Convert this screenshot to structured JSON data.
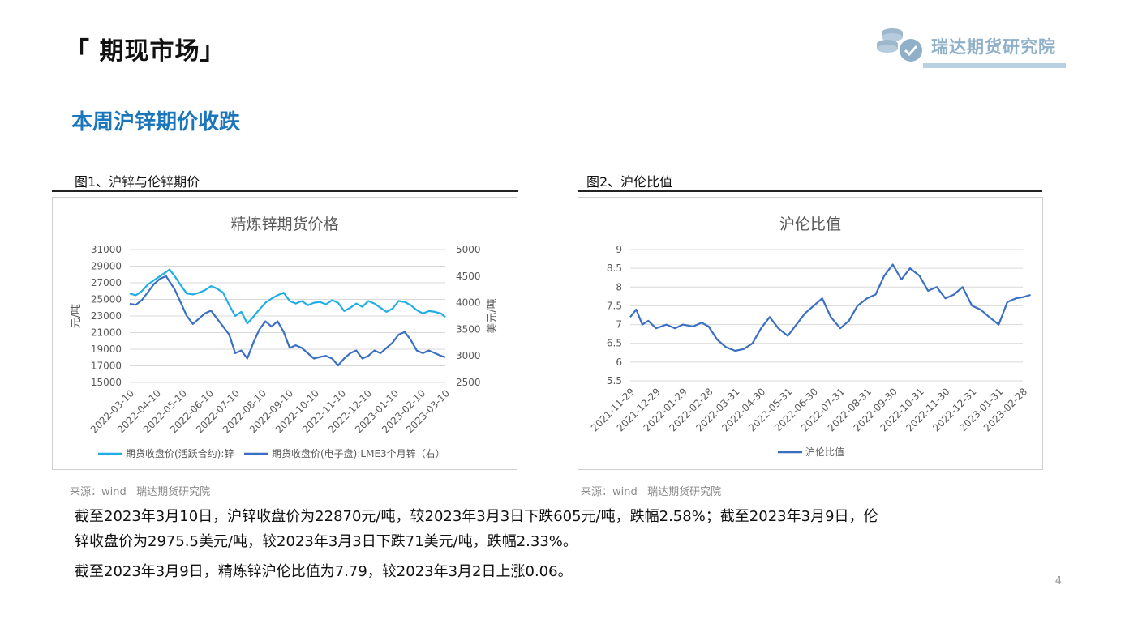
{
  "header": {
    "section_title": "「 期现市场」",
    "logo_text": "瑞达期货研究院"
  },
  "subheading": "本周沪锌期价收跌",
  "fig1": {
    "caption": "图1、沪锌与伦锌期价",
    "source": "来源：wind   瑞达期货研究院"
  },
  "fig2": {
    "caption": "图2、沪伦比值",
    "source": "来源：wind   瑞达期货研究院"
  },
  "body": {
    "para1_line1": "截至2023年3月10日，沪锌收盘价为22870元/吨，较2023年3月3日下跌605元/吨，跌幅2.58%；截至2023年3月9日，伦",
    "para1_line2": "锌收盘价为2975.5美元/吨，较2023年3月3日下跌71美元/吨，跌幅2.33%。",
    "para2": "截至2023年3月9日，精炼锌沪伦比值为7.79，较2023年3月2日上涨0.06。"
  },
  "page_number": "4",
  "colors": {
    "accent": "#1b76bb",
    "series_light": "#21aee5",
    "series_dark": "#3a6fc4"
  },
  "chart_data": [
    {
      "type": "line",
      "title": "精炼锌期货价格",
      "ylabel": "元/吨",
      "y2label": "美元/吨",
      "ylim": [
        15000,
        31000
      ],
      "y2lim": [
        2500,
        5000
      ],
      "yticks": [
        "15000",
        "17000",
        "19000",
        "21000",
        "23000",
        "25000",
        "27000",
        "29000",
        "31000"
      ],
      "y2ticks": [
        "2500",
        "3000",
        "3500",
        "4000",
        "4500",
        "5000"
      ],
      "xticks": [
        "2022-03-10",
        "2022-04-10",
        "2022-05-10",
        "2022-06-10",
        "2022-07-10",
        "2022-08-10",
        "2022-09-10",
        "2022-10-10",
        "2022-11-10",
        "2022-12-10",
        "2023-01-10",
        "2023-02-10",
        "2023-03-10"
      ],
      "legend_position": "bottom",
      "grid": true,
      "series": [
        {
          "name": "期货收盘价(活跃合约):锌",
          "axis": "left",
          "color": "#21aee5",
          "x": [
            "2022-03-10",
            "2022-03-17",
            "2022-03-24",
            "2022-03-31",
            "2022-04-07",
            "2022-04-14",
            "2022-04-21",
            "2022-04-25",
            "2022-05-01",
            "2022-05-08",
            "2022-05-15",
            "2022-05-22",
            "2022-05-29",
            "2022-06-05",
            "2022-06-12",
            "2022-06-19",
            "2022-06-26",
            "2022-07-03",
            "2022-07-10",
            "2022-07-17",
            "2022-07-24",
            "2022-07-31",
            "2022-08-07",
            "2022-08-14",
            "2022-08-21",
            "2022-08-28",
            "2022-09-04",
            "2022-09-11",
            "2022-09-18",
            "2022-09-25",
            "2022-10-02",
            "2022-10-09",
            "2022-10-16",
            "2022-10-23",
            "2022-10-30",
            "2022-11-06",
            "2022-11-13",
            "2022-11-20",
            "2022-11-27",
            "2022-12-04",
            "2022-12-11",
            "2022-12-18",
            "2022-12-25",
            "2023-01-01",
            "2023-01-08",
            "2023-01-15",
            "2023-01-22",
            "2023-01-29",
            "2023-02-05",
            "2023-02-12",
            "2023-02-19",
            "2023-02-26",
            "2023-03-05",
            "2023-03-10"
          ],
          "y": [
            25700,
            25500,
            26000,
            26800,
            27300,
            27800,
            28300,
            28600,
            27800,
            26700,
            25700,
            25600,
            25800,
            26100,
            26600,
            26300,
            25800,
            24300,
            23000,
            23500,
            22100,
            22900,
            23800,
            24600,
            25100,
            25500,
            25800,
            24800,
            24500,
            24800,
            24300,
            24600,
            24700,
            24400,
            24900,
            24600,
            23600,
            24000,
            24500,
            24100,
            24800,
            24500,
            24000,
            23500,
            23900,
            24800,
            24700,
            24300,
            23700,
            23300,
            23600,
            23500,
            23300,
            22870
          ]
        },
        {
          "name": "期货收盘价(电子盘):LME3个月锌（右）",
          "axis": "right",
          "color": "#3a6fc4",
          "x": [
            "2022-03-10",
            "2022-03-17",
            "2022-03-24",
            "2022-03-31",
            "2022-04-07",
            "2022-04-14",
            "2022-04-21",
            "2022-04-25",
            "2022-05-01",
            "2022-05-08",
            "2022-05-15",
            "2022-05-22",
            "2022-05-29",
            "2022-06-05",
            "2022-06-12",
            "2022-06-19",
            "2022-06-26",
            "2022-07-03",
            "2022-07-10",
            "2022-07-17",
            "2022-07-24",
            "2022-07-31",
            "2022-08-07",
            "2022-08-14",
            "2022-08-21",
            "2022-08-28",
            "2022-09-04",
            "2022-09-11",
            "2022-09-18",
            "2022-09-25",
            "2022-10-02",
            "2022-10-09",
            "2022-10-16",
            "2022-10-23",
            "2022-10-30",
            "2022-11-06",
            "2022-11-13",
            "2022-11-20",
            "2022-11-27",
            "2022-12-04",
            "2022-12-11",
            "2022-12-18",
            "2022-12-25",
            "2023-01-01",
            "2023-01-08",
            "2023-01-15",
            "2023-01-22",
            "2023-01-29",
            "2023-02-05",
            "2023-02-12",
            "2023-02-19",
            "2023-02-26",
            "2023-03-05",
            "2023-03-10"
          ],
          "y": [
            3980,
            3960,
            4050,
            4200,
            4350,
            4450,
            4500,
            4400,
            4250,
            4000,
            3750,
            3600,
            3700,
            3800,
            3850,
            3700,
            3550,
            3400,
            3050,
            3100,
            2950,
            3250,
            3500,
            3650,
            3550,
            3650,
            3450,
            3150,
            3200,
            3150,
            3050,
            2950,
            2980,
            3000,
            2950,
            2820,
            2950,
            3050,
            3100,
            2950,
            3000,
            3100,
            3050,
            3150,
            3250,
            3400,
            3450,
            3300,
            3100,
            3050,
            3100,
            3050,
            3000,
            2975.5
          ]
        }
      ]
    },
    {
      "type": "line",
      "title": "沪伦比值",
      "ylim": [
        5.5,
        9
      ],
      "yticks": [
        "5.5",
        "6",
        "6.5",
        "7",
        "7.5",
        "8",
        "8.5",
        "9"
      ],
      "xticks": [
        "2021-11-29",
        "2021-12-29",
        "2022-01-29",
        "2022-02-28",
        "2022-03-31",
        "2022-04-30",
        "2022-05-31",
        "2022-06-30",
        "2022-07-31",
        "2022-08-31",
        "2022-09-30",
        "2022-10-31",
        "2022-11-30",
        "2022-12-31",
        "2023-01-31",
        "2023-02-28"
      ],
      "legend_position": "bottom",
      "grid": true,
      "series": [
        {
          "name": "沪伦比值",
          "color": "#3a6fc4",
          "x": [
            "2021-11-29",
            "2021-12-06",
            "2021-12-13",
            "2021-12-20",
            "2021-12-29",
            "2022-01-10",
            "2022-01-20",
            "2022-01-29",
            "2022-02-10",
            "2022-02-20",
            "2022-02-28",
            "2022-03-10",
            "2022-03-20",
            "2022-03-31",
            "2022-04-10",
            "2022-04-20",
            "2022-04-30",
            "2022-05-10",
            "2022-05-20",
            "2022-05-31",
            "2022-06-10",
            "2022-06-20",
            "2022-06-30",
            "2022-07-10",
            "2022-07-20",
            "2022-07-31",
            "2022-08-10",
            "2022-08-20",
            "2022-08-31",
            "2022-09-10",
            "2022-09-20",
            "2022-09-30",
            "2022-10-10",
            "2022-10-20",
            "2022-10-31",
            "2022-11-10",
            "2022-11-20",
            "2022-11-30",
            "2022-12-10",
            "2022-12-20",
            "2022-12-31",
            "2023-01-10",
            "2023-01-20",
            "2023-01-31",
            "2023-02-10",
            "2023-02-20",
            "2023-02-28",
            "2023-03-09"
          ],
          "y": [
            7.2,
            7.4,
            7.0,
            7.1,
            6.9,
            7.0,
            6.9,
            7.0,
            6.95,
            7.05,
            6.95,
            6.6,
            6.4,
            6.3,
            6.35,
            6.5,
            6.9,
            7.2,
            6.9,
            6.7,
            7.0,
            7.3,
            7.5,
            7.7,
            7.2,
            6.9,
            7.1,
            7.5,
            7.7,
            7.8,
            8.3,
            8.6,
            8.2,
            8.5,
            8.3,
            7.9,
            8.0,
            7.7,
            7.8,
            8.0,
            7.5,
            7.4,
            7.2,
            7.0,
            7.6,
            7.7,
            7.73,
            7.79
          ]
        }
      ]
    }
  ]
}
